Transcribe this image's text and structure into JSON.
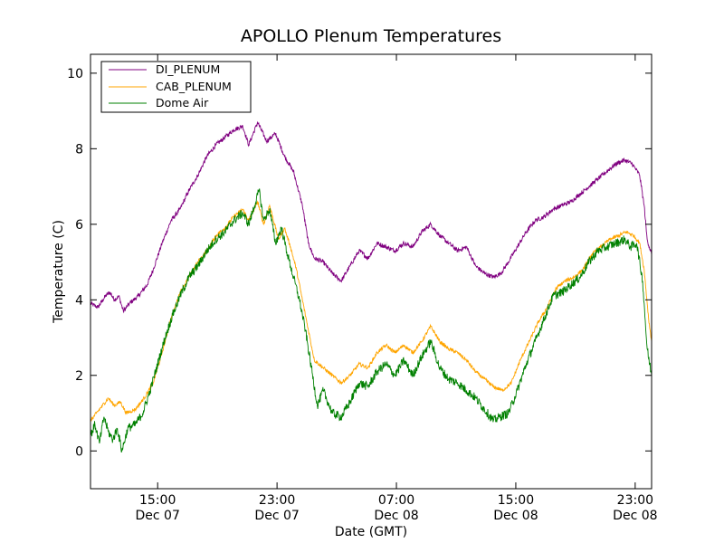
{
  "chart_data": {
    "type": "line",
    "title": "APOLLO Plenum Temperatures",
    "xlabel": "Date (GMT)",
    "ylabel": "Temperature (C)",
    "x_unit": "hours since 2012-12-07 10:30 GMT",
    "xlim": [
      0,
      37.6
    ],
    "ylim": [
      -1,
      10.5
    ],
    "y_ticks": [
      0,
      2,
      4,
      6,
      8,
      10
    ],
    "x_ticks": [
      {
        "x": 4.5,
        "line1": "15:00",
        "line2": "Dec 07"
      },
      {
        "x": 12.5,
        "line1": "23:00",
        "line2": "Dec 07"
      },
      {
        "x": 20.5,
        "line1": "07:00",
        "line2": "Dec 08"
      },
      {
        "x": 28.5,
        "line1": "15:00",
        "line2": "Dec 08"
      },
      {
        "x": 36.5,
        "line1": "23:00",
        "line2": "Dec 08"
      }
    ],
    "legend_position": "upper-left",
    "series": [
      {
        "name": "DI_PLENUM",
        "color": "#800080",
        "points": [
          [
            0,
            3.9
          ],
          [
            0.5,
            3.8
          ],
          [
            1,
            4.1
          ],
          [
            1.3,
            4.2
          ],
          [
            1.6,
            4.0
          ],
          [
            1.9,
            4.1
          ],
          [
            2.2,
            3.7
          ],
          [
            2.6,
            3.9
          ],
          [
            3.2,
            4.1
          ],
          [
            3.8,
            4.4
          ],
          [
            4.2,
            4.8
          ],
          [
            4.8,
            5.5
          ],
          [
            5.4,
            6.1
          ],
          [
            6,
            6.4
          ],
          [
            6.6,
            6.9
          ],
          [
            7.2,
            7.3
          ],
          [
            7.8,
            7.8
          ],
          [
            8.4,
            8.1
          ],
          [
            9,
            8.3
          ],
          [
            9.6,
            8.5
          ],
          [
            10.2,
            8.6
          ],
          [
            10.6,
            8.1
          ],
          [
            11.2,
            8.7
          ],
          [
            11.8,
            8.2
          ],
          [
            12.4,
            8.4
          ],
          [
            13,
            7.8
          ],
          [
            13.6,
            7.4
          ],
          [
            14.2,
            6.5
          ],
          [
            14.6,
            5.5
          ],
          [
            15,
            5.1
          ],
          [
            15.6,
            5.0
          ],
          [
            16.2,
            4.7
          ],
          [
            16.8,
            4.5
          ],
          [
            17.4,
            4.9
          ],
          [
            18,
            5.3
          ],
          [
            18.6,
            5.1
          ],
          [
            19.2,
            5.5
          ],
          [
            19.8,
            5.4
          ],
          [
            20.4,
            5.3
          ],
          [
            21,
            5.5
          ],
          [
            21.6,
            5.4
          ],
          [
            22.2,
            5.8
          ],
          [
            22.8,
            6.0
          ],
          [
            23.4,
            5.7
          ],
          [
            24,
            5.5
          ],
          [
            24.6,
            5.3
          ],
          [
            25.2,
            5.4
          ],
          [
            25.8,
            4.9
          ],
          [
            26.4,
            4.7
          ],
          [
            27,
            4.6
          ],
          [
            27.5,
            4.7
          ],
          [
            28,
            5.0
          ],
          [
            28.6,
            5.4
          ],
          [
            29.2,
            5.8
          ],
          [
            29.8,
            6.1
          ],
          [
            30.4,
            6.2
          ],
          [
            31,
            6.4
          ],
          [
            31.6,
            6.5
          ],
          [
            32.2,
            6.6
          ],
          [
            32.8,
            6.8
          ],
          [
            33.4,
            7.0
          ],
          [
            34,
            7.2
          ],
          [
            34.6,
            7.4
          ],
          [
            35.2,
            7.6
          ],
          [
            35.8,
            7.7
          ],
          [
            36.3,
            7.6
          ],
          [
            36.8,
            7.3
          ],
          [
            37.1,
            6.5
          ],
          [
            37.3,
            5.6
          ],
          [
            37.6,
            5.2
          ]
        ]
      },
      {
        "name": "CAB_PLENUM",
        "color": "#FFA500",
        "points": [
          [
            0,
            0.8
          ],
          [
            0.4,
            1.0
          ],
          [
            0.8,
            1.2
          ],
          [
            1.2,
            1.4
          ],
          [
            1.6,
            1.2
          ],
          [
            2,
            1.3
          ],
          [
            2.4,
            1.0
          ],
          [
            3,
            1.1
          ],
          [
            3.6,
            1.4
          ],
          [
            4.2,
            1.8
          ],
          [
            4.8,
            2.6
          ],
          [
            5.4,
            3.5
          ],
          [
            6,
            4.2
          ],
          [
            6.6,
            4.6
          ],
          [
            7.2,
            5.0
          ],
          [
            7.8,
            5.3
          ],
          [
            8.4,
            5.7
          ],
          [
            9,
            5.9
          ],
          [
            9.6,
            6.2
          ],
          [
            10.2,
            6.4
          ],
          [
            10.6,
            6.1
          ],
          [
            11.2,
            6.6
          ],
          [
            11.6,
            6.0
          ],
          [
            12,
            6.5
          ],
          [
            12.6,
            5.6
          ],
          [
            13,
            5.9
          ],
          [
            13.4,
            5.4
          ],
          [
            13.8,
            4.8
          ],
          [
            14.2,
            4.0
          ],
          [
            14.6,
            3.2
          ],
          [
            15,
            2.4
          ],
          [
            15.6,
            2.2
          ],
          [
            16.2,
            2.0
          ],
          [
            16.8,
            1.8
          ],
          [
            17.4,
            2.0
          ],
          [
            18,
            2.3
          ],
          [
            18.6,
            2.2
          ],
          [
            19.2,
            2.6
          ],
          [
            19.8,
            2.8
          ],
          [
            20.4,
            2.6
          ],
          [
            21,
            2.8
          ],
          [
            21.6,
            2.6
          ],
          [
            22.2,
            2.9
          ],
          [
            22.8,
            3.3
          ],
          [
            23.4,
            2.9
          ],
          [
            24,
            2.7
          ],
          [
            24.6,
            2.6
          ],
          [
            25.2,
            2.4
          ],
          [
            25.8,
            2.1
          ],
          [
            26.4,
            1.9
          ],
          [
            27,
            1.7
          ],
          [
            27.6,
            1.6
          ],
          [
            28.2,
            1.8
          ],
          [
            28.8,
            2.4
          ],
          [
            29.4,
            2.9
          ],
          [
            30,
            3.4
          ],
          [
            30.6,
            3.8
          ],
          [
            31.2,
            4.3
          ],
          [
            31.8,
            4.5
          ],
          [
            32.4,
            4.6
          ],
          [
            33,
            4.8
          ],
          [
            33.6,
            5.2
          ],
          [
            34.2,
            5.4
          ],
          [
            34.8,
            5.6
          ],
          [
            35.4,
            5.7
          ],
          [
            35.9,
            5.8
          ],
          [
            36.4,
            5.7
          ],
          [
            36.8,
            5.5
          ],
          [
            37.1,
            4.8
          ],
          [
            37.4,
            3.5
          ],
          [
            37.6,
            2.9
          ]
        ]
      },
      {
        "name": "Dome Air",
        "color": "#008000",
        "points": [
          [
            0,
            0.4
          ],
          [
            0.3,
            0.7
          ],
          [
            0.6,
            0.2
          ],
          [
            0.9,
            0.9
          ],
          [
            1.2,
            0.5
          ],
          [
            1.5,
            0.3
          ],
          [
            1.8,
            0.6
          ],
          [
            2.1,
            0.0
          ],
          [
            2.5,
            0.6
          ],
          [
            3,
            0.7
          ],
          [
            3.5,
            1.0
          ],
          [
            4,
            1.6
          ],
          [
            4.5,
            2.3
          ],
          [
            5,
            3.0
          ],
          [
            5.5,
            3.6
          ],
          [
            6,
            4.1
          ],
          [
            6.6,
            4.6
          ],
          [
            7.2,
            4.9
          ],
          [
            7.8,
            5.3
          ],
          [
            8.4,
            5.6
          ],
          [
            9,
            5.8
          ],
          [
            9.6,
            6.1
          ],
          [
            10.2,
            6.3
          ],
          [
            10.6,
            6.0
          ],
          [
            11,
            6.5
          ],
          [
            11.3,
            6.9
          ],
          [
            11.6,
            6.1
          ],
          [
            12,
            6.4
          ],
          [
            12.4,
            5.5
          ],
          [
            12.8,
            5.9
          ],
          [
            13.2,
            5.2
          ],
          [
            13.6,
            4.6
          ],
          [
            14,
            4.0
          ],
          [
            14.4,
            3.2
          ],
          [
            14.8,
            2.2
          ],
          [
            15.2,
            1.2
          ],
          [
            15.6,
            1.6
          ],
          [
            16.2,
            1.0
          ],
          [
            16.8,
            0.9
          ],
          [
            17.4,
            1.3
          ],
          [
            18,
            1.8
          ],
          [
            18.6,
            1.7
          ],
          [
            19.2,
            2.1
          ],
          [
            19.8,
            2.3
          ],
          [
            20.4,
            2.0
          ],
          [
            21,
            2.4
          ],
          [
            21.6,
            2.0
          ],
          [
            22.2,
            2.5
          ],
          [
            22.8,
            2.9
          ],
          [
            23.4,
            2.2
          ],
          [
            24,
            1.9
          ],
          [
            24.6,
            1.8
          ],
          [
            25.2,
            1.6
          ],
          [
            25.8,
            1.4
          ],
          [
            26.4,
            1.1
          ],
          [
            27,
            0.8
          ],
          [
            27.4,
            0.9
          ],
          [
            28,
            1.0
          ],
          [
            28.6,
            1.6
          ],
          [
            29.2,
            2.3
          ],
          [
            29.8,
            2.9
          ],
          [
            30.4,
            3.5
          ],
          [
            31,
            4.1
          ],
          [
            31.6,
            4.2
          ],
          [
            32.2,
            4.4
          ],
          [
            32.8,
            4.6
          ],
          [
            33.4,
            5.0
          ],
          [
            34,
            5.3
          ],
          [
            34.6,
            5.4
          ],
          [
            35.2,
            5.5
          ],
          [
            35.8,
            5.6
          ],
          [
            36.2,
            5.4
          ],
          [
            36.6,
            5.5
          ],
          [
            37,
            4.5
          ],
          [
            37.3,
            2.7
          ],
          [
            37.6,
            2.0
          ]
        ]
      }
    ]
  }
}
